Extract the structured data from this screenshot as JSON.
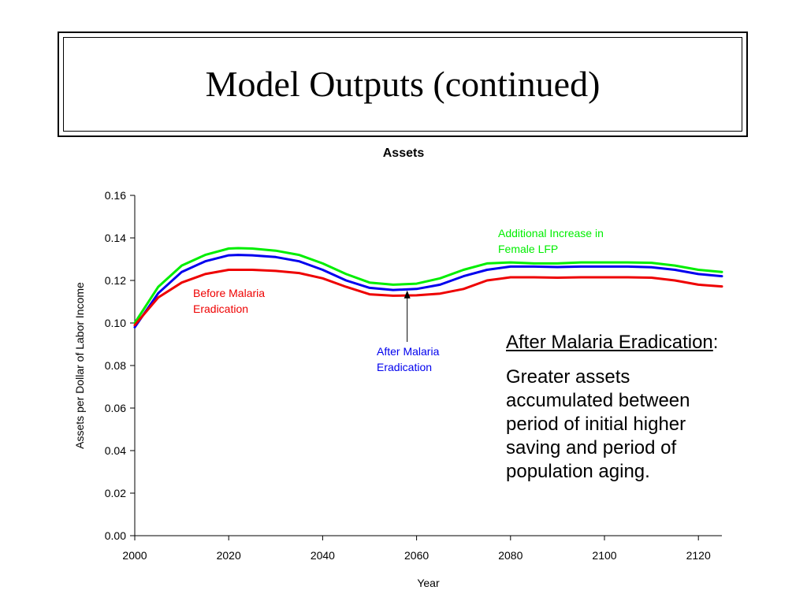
{
  "slide": {
    "title": "Model Outputs (continued)"
  },
  "callout": {
    "heading": "After Malaria Eradication",
    "heading_suffix": ":",
    "body": "Greater assets accumulated between period of initial higher saving and period of population aging."
  },
  "chart_data": {
    "type": "line",
    "title": "Assets",
    "xlabel": "Year",
    "ylabel": "Assets per Dollar of Labor Income",
    "xlim": [
      2000,
      2125
    ],
    "ylim": [
      0,
      0.16
    ],
    "xticks": [
      "2000",
      "2020",
      "2040",
      "2060",
      "2080",
      "2100",
      "2120"
    ],
    "yticks": [
      "0.00",
      "0.02",
      "0.04",
      "0.06",
      "0.08",
      "0.10",
      "0.12",
      "0.14",
      "0.16"
    ],
    "grid": false,
    "legend": "none",
    "series": [
      {
        "name": "Additional Increase in Female LFP",
        "color": "#00ee00",
        "x": [
          2000,
          2005,
          2010,
          2015,
          2020,
          2022,
          2025,
          2030,
          2035,
          2040,
          2045,
          2050,
          2055,
          2060,
          2065,
          2070,
          2075,
          2080,
          2085,
          2090,
          2095,
          2100,
          2105,
          2110,
          2115,
          2120,
          2125
        ],
        "y": [
          0.1,
          0.117,
          0.127,
          0.132,
          0.135,
          0.1352,
          0.135,
          0.134,
          0.132,
          0.128,
          0.123,
          0.119,
          0.118,
          0.1185,
          0.121,
          0.125,
          0.128,
          0.1285,
          0.128,
          0.128,
          0.1285,
          0.1285,
          0.1285,
          0.1283,
          0.127,
          0.125,
          0.124
        ]
      },
      {
        "name": "After Malaria Eradication",
        "color": "#0000ee",
        "x": [
          2000,
          2005,
          2010,
          2015,
          2020,
          2022,
          2025,
          2030,
          2035,
          2040,
          2045,
          2050,
          2055,
          2060,
          2065,
          2070,
          2075,
          2080,
          2085,
          2090,
          2095,
          2100,
          2105,
          2110,
          2115,
          2120,
          2125
        ],
        "y": [
          0.098,
          0.114,
          0.124,
          0.129,
          0.1318,
          0.132,
          0.1318,
          0.131,
          0.129,
          0.125,
          0.12,
          0.1165,
          0.1155,
          0.116,
          0.118,
          0.122,
          0.125,
          0.1265,
          0.1265,
          0.1263,
          0.1265,
          0.1265,
          0.1265,
          0.1262,
          0.125,
          0.123,
          0.122
        ]
      },
      {
        "name": "Before Malaria Eradication",
        "color": "#ee0000",
        "x": [
          2000,
          2005,
          2010,
          2015,
          2020,
          2022,
          2025,
          2030,
          2035,
          2040,
          2045,
          2050,
          2055,
          2060,
          2065,
          2070,
          2075,
          2080,
          2085,
          2090,
          2095,
          2100,
          2105,
          2110,
          2115,
          2120,
          2125
        ],
        "y": [
          0.099,
          0.112,
          0.119,
          0.123,
          0.125,
          0.125,
          0.125,
          0.1245,
          0.1235,
          0.121,
          0.117,
          0.1135,
          0.1128,
          0.113,
          0.1138,
          0.116,
          0.12,
          0.1215,
          0.1215,
          0.1213,
          0.1215,
          0.1215,
          0.1215,
          0.1213,
          0.12,
          0.118,
          0.1172
        ]
      }
    ],
    "annotations": [
      {
        "text": "Before Malaria Eradication",
        "color": "#ee0000"
      },
      {
        "text": "After Malaria Eradication",
        "color": "#0000ee",
        "arrow_to": {
          "x": 2058,
          "y": 0.116
        }
      },
      {
        "text": "Additional Increase in Female LFP",
        "color": "#00ee00"
      }
    ]
  }
}
